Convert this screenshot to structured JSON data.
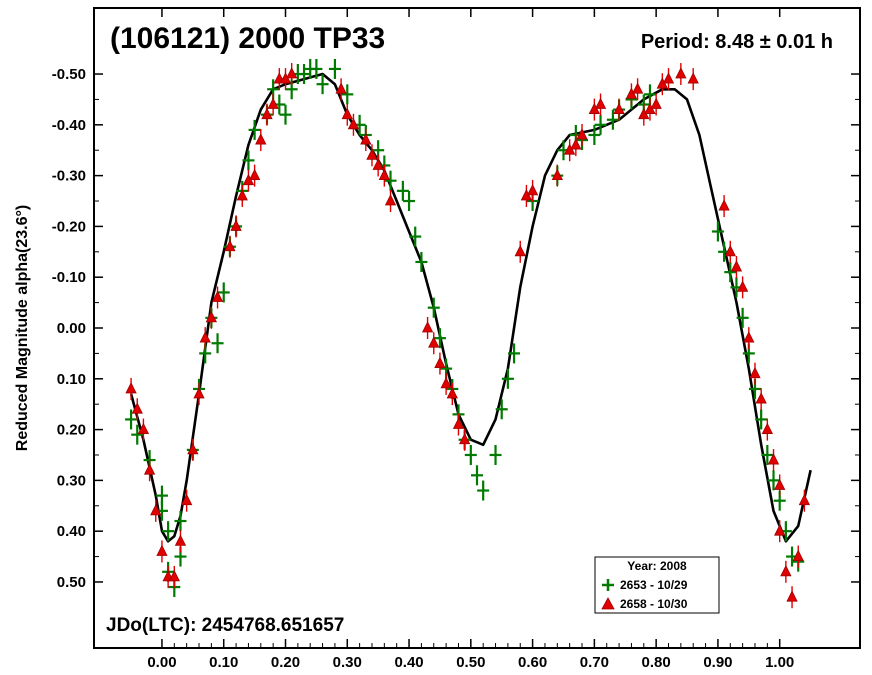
{
  "chart_data": {
    "type": "scatter",
    "title": "(106121) 2000 TP33",
    "period_label": "Period: 8.48 ± 0.01 h",
    "jd_label": "JDo(LTC): 2454768.651657",
    "xlabel": "",
    "ylabel": "Reduced Magnitude alpha(23.6°)",
    "xlim": [
      -0.11,
      1.13
    ],
    "ylim": [
      -0.63,
      0.63
    ],
    "y_inverted": true,
    "grid": false,
    "x_ticks": [
      "0.00",
      "0.10",
      "0.20",
      "0.30",
      "0.40",
      "0.50",
      "0.60",
      "0.70",
      "0.80",
      "0.90",
      "1.00"
    ],
    "y_ticks": [
      "-0.50",
      "-0.40",
      "-0.30",
      "-0.20",
      "-0.10",
      "0.00",
      "0.10",
      "0.20",
      "0.30",
      "0.40",
      "0.50"
    ],
    "legend": {
      "position": "bottom-right",
      "title": "Year: 2008",
      "entries": [
        {
          "label": "2653 - 10/29",
          "marker": "plus",
          "color": "#007a00"
        },
        {
          "label": "2658 - 10/30",
          "marker": "triangle",
          "color": "#e00000"
        }
      ]
    },
    "series": [
      {
        "name": "2653 - 10/29",
        "marker": "plus",
        "color": "#007a00",
        "points": [
          [
            -0.05,
            0.18
          ],
          [
            -0.04,
            0.21
          ],
          [
            -0.02,
            0.26
          ],
          [
            0.0,
            0.33
          ],
          [
            0.0,
            0.36
          ],
          [
            0.01,
            0.4
          ],
          [
            0.01,
            0.48
          ],
          [
            0.02,
            0.51
          ],
          [
            0.03,
            0.45
          ],
          [
            0.03,
            0.38
          ],
          [
            0.05,
            0.24
          ],
          [
            0.06,
            0.12
          ],
          [
            0.07,
            0.05
          ],
          [
            0.08,
            -0.02
          ],
          [
            0.09,
            0.03
          ],
          [
            0.1,
            -0.07
          ],
          [
            0.11,
            -0.16
          ],
          [
            0.12,
            -0.2
          ],
          [
            0.13,
            -0.27
          ],
          [
            0.14,
            -0.33
          ],
          [
            0.15,
            -0.39
          ],
          [
            0.17,
            -0.42
          ],
          [
            0.18,
            -0.47
          ],
          [
            0.19,
            -0.44
          ],
          [
            0.2,
            -0.42
          ],
          [
            0.21,
            -0.47
          ],
          [
            0.22,
            -0.5
          ],
          [
            0.23,
            -0.5
          ],
          [
            0.24,
            -0.51
          ],
          [
            0.25,
            -0.51
          ],
          [
            0.26,
            -0.48
          ],
          [
            0.28,
            -0.51
          ],
          [
            0.3,
            -0.46
          ],
          [
            0.32,
            -0.4
          ],
          [
            0.33,
            -0.38
          ],
          [
            0.35,
            -0.35
          ],
          [
            0.36,
            -0.32
          ],
          [
            0.37,
            -0.29
          ],
          [
            0.39,
            -0.27
          ],
          [
            0.4,
            -0.25
          ],
          [
            0.41,
            -0.18
          ],
          [
            0.42,
            -0.13
          ],
          [
            0.44,
            -0.04
          ],
          [
            0.45,
            0.02
          ],
          [
            0.46,
            0.08
          ],
          [
            0.47,
            0.12
          ],
          [
            0.48,
            0.17
          ],
          [
            0.49,
            0.22
          ],
          [
            0.5,
            0.25
          ],
          [
            0.51,
            0.29
          ],
          [
            0.52,
            0.32
          ],
          [
            0.54,
            0.25
          ],
          [
            0.55,
            0.16
          ],
          [
            0.56,
            0.1
          ],
          [
            0.57,
            0.05
          ],
          [
            0.6,
            -0.25
          ],
          [
            0.64,
            -0.3
          ],
          [
            0.65,
            -0.35
          ],
          [
            0.67,
            -0.38
          ],
          [
            0.68,
            -0.37
          ],
          [
            0.7,
            -0.38
          ],
          [
            0.71,
            -0.4
          ],
          [
            0.73,
            -0.41
          ],
          [
            0.74,
            -0.43
          ],
          [
            0.76,
            -0.45
          ],
          [
            0.78,
            -0.44
          ],
          [
            0.79,
            -0.46
          ],
          [
            0.9,
            -0.19
          ],
          [
            0.91,
            -0.15
          ],
          [
            0.92,
            -0.11
          ],
          [
            0.93,
            -0.08
          ],
          [
            0.94,
            -0.02
          ],
          [
            0.95,
            0.05
          ],
          [
            0.96,
            0.12
          ],
          [
            0.97,
            0.18
          ],
          [
            0.98,
            0.25
          ],
          [
            0.99,
            0.3
          ],
          [
            1.0,
            0.34
          ],
          [
            1.01,
            0.4
          ],
          [
            1.02,
            0.45
          ],
          [
            1.03,
            0.46
          ]
        ]
      },
      {
        "name": "2658 - 10/30",
        "marker": "triangle",
        "color": "#e00000",
        "points": [
          [
            -0.05,
            0.12
          ],
          [
            -0.04,
            0.16
          ],
          [
            -0.03,
            0.2
          ],
          [
            -0.02,
            0.28
          ],
          [
            -0.01,
            0.36
          ],
          [
            0.0,
            0.44
          ],
          [
            0.01,
            0.49
          ],
          [
            0.02,
            0.49
          ],
          [
            0.03,
            0.42
          ],
          [
            0.04,
            0.34
          ],
          [
            0.05,
            0.24
          ],
          [
            0.06,
            0.13
          ],
          [
            0.07,
            0.02
          ],
          [
            0.08,
            -0.02
          ],
          [
            0.09,
            -0.06
          ],
          [
            0.11,
            -0.16
          ],
          [
            0.12,
            -0.2
          ],
          [
            0.13,
            -0.26
          ],
          [
            0.14,
            -0.29
          ],
          [
            0.15,
            -0.3
          ],
          [
            0.16,
            -0.37
          ],
          [
            0.17,
            -0.42
          ],
          [
            0.18,
            -0.44
          ],
          [
            0.19,
            -0.49
          ],
          [
            0.2,
            -0.49
          ],
          [
            0.21,
            -0.5
          ],
          [
            0.29,
            -0.47
          ],
          [
            0.3,
            -0.42
          ],
          [
            0.31,
            -0.4
          ],
          [
            0.33,
            -0.37
          ],
          [
            0.34,
            -0.34
          ],
          [
            0.35,
            -0.32
          ],
          [
            0.36,
            -0.3
          ],
          [
            0.37,
            -0.25
          ],
          [
            0.43,
            0.0
          ],
          [
            0.44,
            0.03
          ],
          [
            0.45,
            0.07
          ],
          [
            0.46,
            0.11
          ],
          [
            0.47,
            0.13
          ],
          [
            0.48,
            0.19
          ],
          [
            0.49,
            0.22
          ],
          [
            0.58,
            -0.15
          ],
          [
            0.59,
            -0.26
          ],
          [
            0.6,
            -0.27
          ],
          [
            0.64,
            -0.3
          ],
          [
            0.66,
            -0.35
          ],
          [
            0.67,
            -0.36
          ],
          [
            0.68,
            -0.38
          ],
          [
            0.7,
            -0.43
          ],
          [
            0.71,
            -0.44
          ],
          [
            0.74,
            -0.43
          ],
          [
            0.76,
            -0.46
          ],
          [
            0.77,
            -0.47
          ],
          [
            0.78,
            -0.42
          ],
          [
            0.79,
            -0.43
          ],
          [
            0.8,
            -0.44
          ],
          [
            0.81,
            -0.48
          ],
          [
            0.82,
            -0.49
          ],
          [
            0.84,
            -0.5
          ],
          [
            0.86,
            -0.49
          ],
          [
            0.91,
            -0.24
          ],
          [
            0.92,
            -0.15
          ],
          [
            0.93,
            -0.12
          ],
          [
            0.94,
            -0.08
          ],
          [
            0.95,
            0.02
          ],
          [
            0.96,
            0.09
          ],
          [
            0.97,
            0.14
          ],
          [
            0.98,
            0.2
          ],
          [
            0.99,
            0.26
          ],
          [
            1.0,
            0.31
          ],
          [
            1.0,
            0.4
          ],
          [
            1.01,
            0.48
          ],
          [
            1.02,
            0.53
          ],
          [
            1.03,
            0.45
          ],
          [
            1.04,
            0.34
          ]
        ]
      },
      {
        "name": "",
        "marker": "line",
        "color": "#000000",
        "points": [
          [
            -0.05,
            0.13
          ],
          [
            -0.03,
            0.22
          ],
          [
            -0.01,
            0.33
          ],
          [
            0.0,
            0.4
          ],
          [
            0.01,
            0.42
          ],
          [
            0.02,
            0.41
          ],
          [
            0.03,
            0.37
          ],
          [
            0.04,
            0.3
          ],
          [
            0.06,
            0.13
          ],
          [
            0.08,
            -0.05
          ],
          [
            0.1,
            -0.15
          ],
          [
            0.12,
            -0.26
          ],
          [
            0.14,
            -0.36
          ],
          [
            0.16,
            -0.43
          ],
          [
            0.18,
            -0.47
          ],
          [
            0.2,
            -0.48
          ],
          [
            0.23,
            -0.49
          ],
          [
            0.26,
            -0.5
          ],
          [
            0.28,
            -0.48
          ],
          [
            0.3,
            -0.42
          ],
          [
            0.32,
            -0.38
          ],
          [
            0.34,
            -0.35
          ],
          [
            0.36,
            -0.31
          ],
          [
            0.38,
            -0.25
          ],
          [
            0.4,
            -0.19
          ],
          [
            0.42,
            -0.13
          ],
          [
            0.44,
            -0.04
          ],
          [
            0.46,
            0.07
          ],
          [
            0.48,
            0.17
          ],
          [
            0.5,
            0.22
          ],
          [
            0.52,
            0.23
          ],
          [
            0.54,
            0.18
          ],
          [
            0.56,
            0.08
          ],
          [
            0.58,
            -0.08
          ],
          [
            0.6,
            -0.2
          ],
          [
            0.62,
            -0.3
          ],
          [
            0.64,
            -0.35
          ],
          [
            0.66,
            -0.38
          ],
          [
            0.7,
            -0.39
          ],
          [
            0.74,
            -0.41
          ],
          [
            0.78,
            -0.45
          ],
          [
            0.81,
            -0.47
          ],
          [
            0.83,
            -0.47
          ],
          [
            0.85,
            -0.45
          ],
          [
            0.87,
            -0.38
          ],
          [
            0.89,
            -0.27
          ],
          [
            0.91,
            -0.16
          ],
          [
            0.93,
            -0.05
          ],
          [
            0.95,
            0.08
          ],
          [
            0.97,
            0.23
          ],
          [
            0.99,
            0.36
          ],
          [
            1.01,
            0.42
          ],
          [
            1.03,
            0.39
          ],
          [
            1.05,
            0.28
          ]
        ]
      }
    ]
  }
}
